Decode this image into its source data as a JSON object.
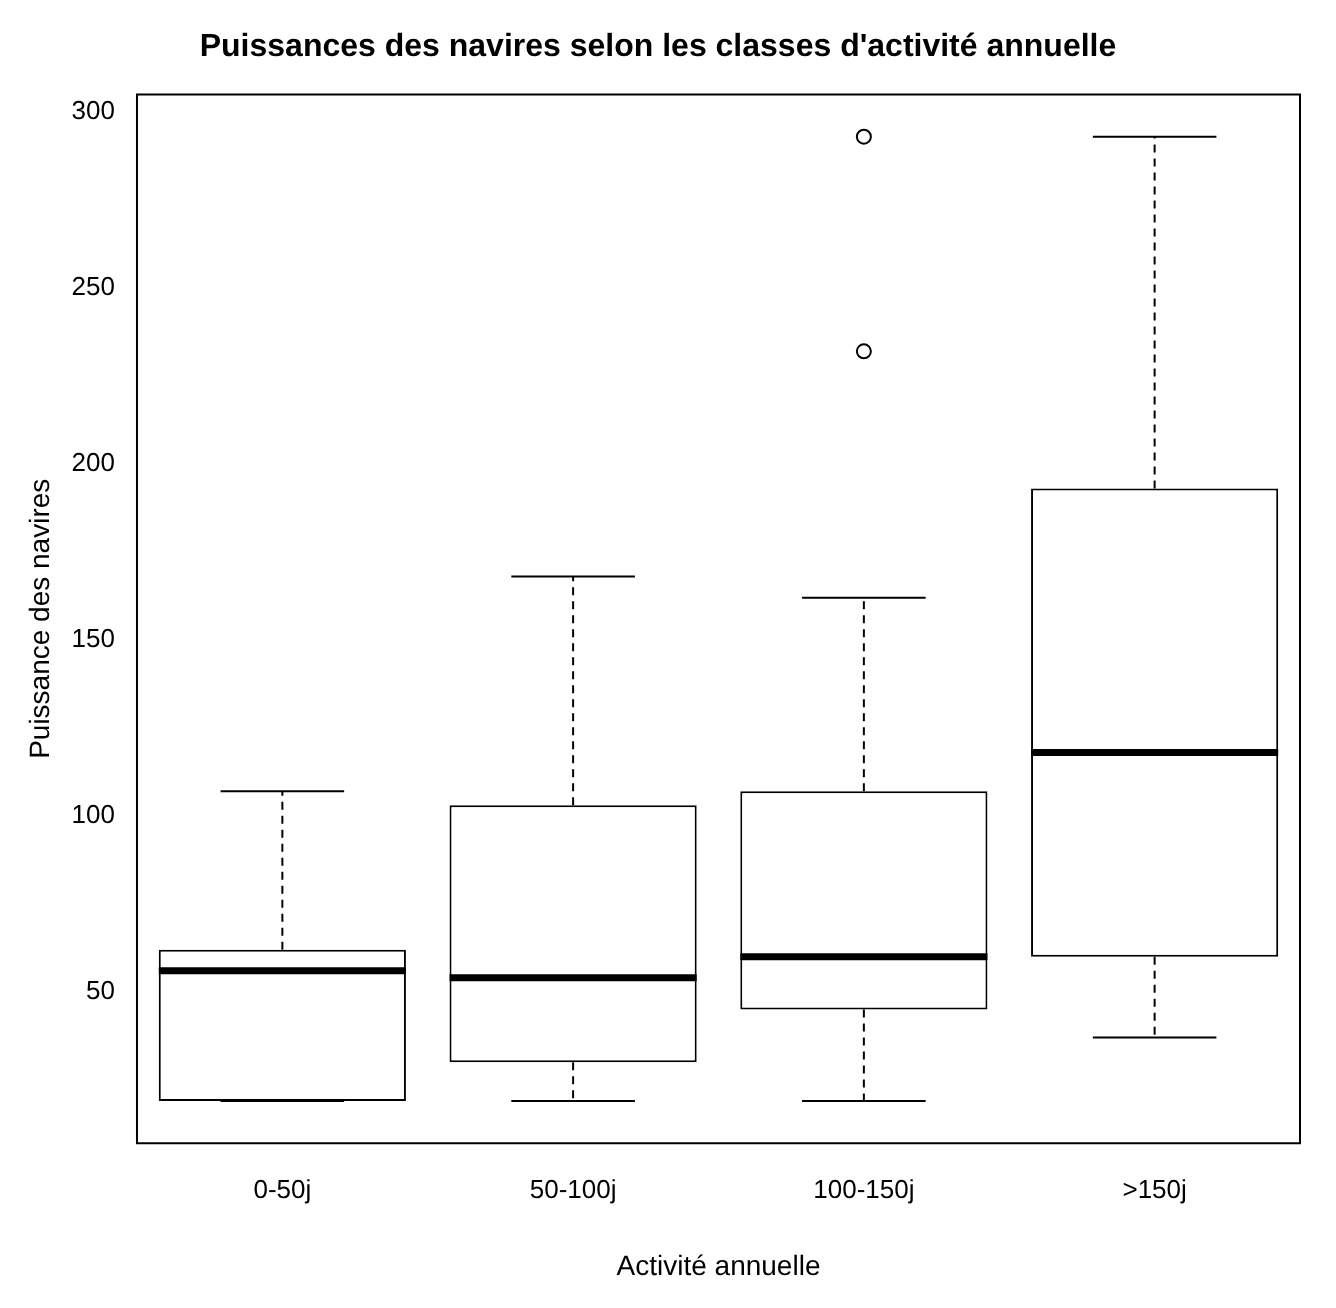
{
  "chart_data": {
    "type": "box",
    "title": "Puissances des navires selon les classes d'activité annuelle",
    "xlabel": "Activité annuelle",
    "ylabel": "Puissance des navires",
    "categories": [
      "0-50j",
      "50-100j",
      "100-150j",
      ">150j"
    ],
    "boxes": [
      {
        "low": 19,
        "q1": 19,
        "median": 56,
        "q3": 62,
        "high": 107
      },
      {
        "low": 19,
        "q1": 30,
        "median": 54,
        "q3": 103,
        "high": 168
      },
      {
        "low": 19,
        "q1": 45,
        "median": 60,
        "q3": 107,
        "high": 162,
        "outliers": [
          232,
          293
        ]
      },
      {
        "low": 37,
        "q1": 60,
        "median": 118,
        "q3": 193,
        "high": 293
      }
    ],
    "ylim": [
      7,
      305
    ],
    "yticks": [
      50,
      100,
      150,
      200,
      250,
      300
    ],
    "grid": false,
    "legend": false
  }
}
